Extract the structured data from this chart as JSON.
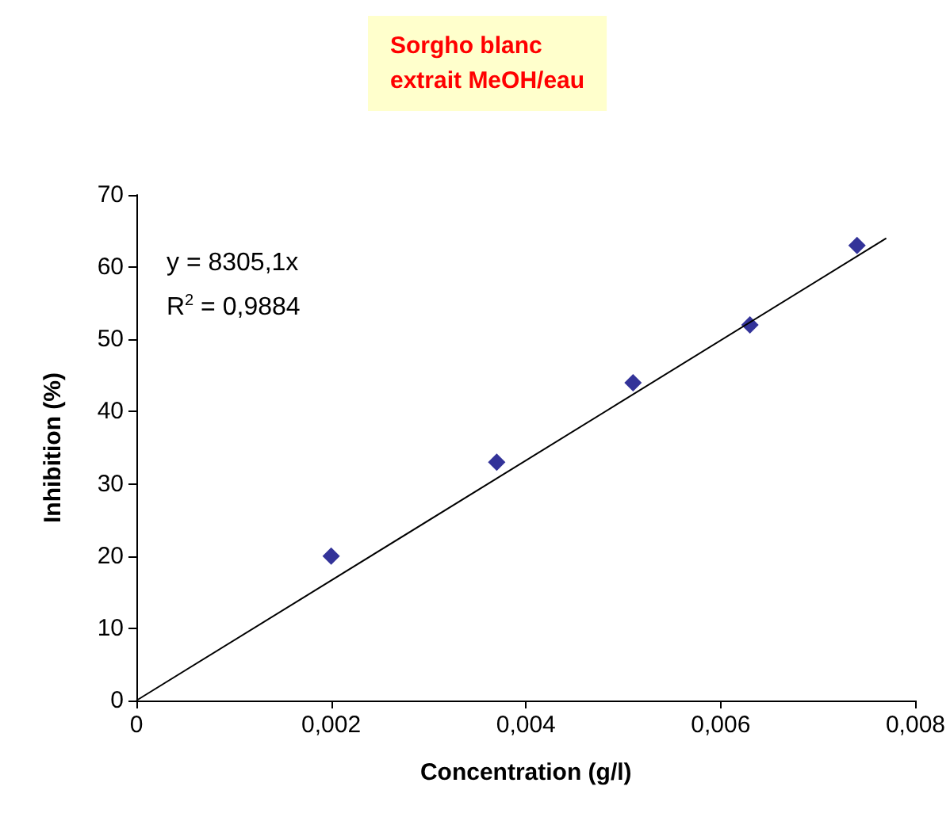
{
  "chart_data": {
    "type": "scatter",
    "title": "Sorgho blanc\nextrait MeOH/eau",
    "xlabel": "Concentration (g/l)",
    "ylabel": "Inhibition (%)",
    "series": [
      {
        "color": "#000080",
        "marker": "diamond",
        "x": [
          0.002,
          0.0037,
          0.0051,
          0.0063,
          0.0074
        ],
        "values": [
          20,
          33,
          44,
          52,
          63
        ]
      },
      {
        "type": "line",
        "color": "#000000",
        "marker": "none",
        "x": [
          0,
          0.0077
        ],
        "values": [
          0,
          64
        ]
      }
    ],
    "annotations": [
      "y = 8305,1x",
      "R$^{2}$ = 0,9884"
    ],
    "xlim": [
      0,
      0.008
    ],
    "xticks": [
      0,
      {
        "value": 0.002,
        "label": "0,002"
      },
      {
        "value": 0.004,
        "label": "0,004"
      },
      {
        "value": 0.006,
        "label": "0,006"
      },
      {
        "value": 0.008,
        "label": "0,008"
      }
    ],
    "ylim": [
      0,
      70
    ],
    "yticks": [
      0,
      10,
      20,
      30,
      40,
      50,
      60,
      70
    ],
    "grid": false
  }
}
